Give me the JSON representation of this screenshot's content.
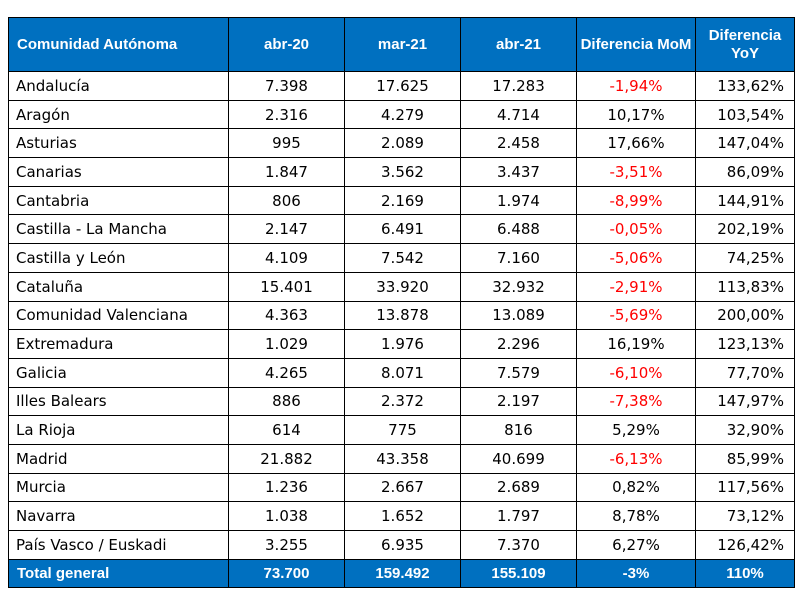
{
  "headers": [
    "Comunidad Autónoma",
    "abr-20",
    "mar-21",
    "abr-21",
    "Diferencia MoM",
    "Diferencia YoY"
  ],
  "rows": [
    {
      "name": "Andalucía",
      "abr20": "7.398",
      "mar21": "17.625",
      "abr21": "17.283",
      "mom": "-1,94%",
      "yoy": "133,62%",
      "mom_negative": true
    },
    {
      "name": "Aragón",
      "abr20": "2.316",
      "mar21": "4.279",
      "abr21": "4.714",
      "mom": "10,17%",
      "yoy": "103,54%",
      "mom_negative": false
    },
    {
      "name": "Asturias",
      "abr20": "995",
      "mar21": "2.089",
      "abr21": "2.458",
      "mom": "17,66%",
      "yoy": "147,04%",
      "mom_negative": false
    },
    {
      "name": "Canarias",
      "abr20": "1.847",
      "mar21": "3.562",
      "abr21": "3.437",
      "mom": "-3,51%",
      "yoy": "86,09%",
      "mom_negative": true
    },
    {
      "name": "Cantabria",
      "abr20": "806",
      "mar21": "2.169",
      "abr21": "1.974",
      "mom": "-8,99%",
      "yoy": "144,91%",
      "mom_negative": true
    },
    {
      "name": "Castilla - La Mancha",
      "abr20": "2.147",
      "mar21": "6.491",
      "abr21": "6.488",
      "mom": "-0,05%",
      "yoy": "202,19%",
      "mom_negative": true
    },
    {
      "name": "Castilla y León",
      "abr20": "4.109",
      "mar21": "7.542",
      "abr21": "7.160",
      "mom": "-5,06%",
      "yoy": "74,25%",
      "mom_negative": true
    },
    {
      "name": "Cataluña",
      "abr20": "15.401",
      "mar21": "33.920",
      "abr21": "32.932",
      "mom": "-2,91%",
      "yoy": "113,83%",
      "mom_negative": true
    },
    {
      "name": "Comunidad Valenciana",
      "abr20": "4.363",
      "mar21": "13.878",
      "abr21": "13.089",
      "mom": "-5,69%",
      "yoy": "200,00%",
      "mom_negative": true
    },
    {
      "name": "Extremadura",
      "abr20": "1.029",
      "mar21": "1.976",
      "abr21": "2.296",
      "mom": "16,19%",
      "yoy": "123,13%",
      "mom_negative": false
    },
    {
      "name": "Galicia",
      "abr20": "4.265",
      "mar21": "8.071",
      "abr21": "7.579",
      "mom": "-6,10%",
      "yoy": "77,70%",
      "mom_negative": true
    },
    {
      "name": "Illes Balears",
      "abr20": "886",
      "mar21": "2.372",
      "abr21": "2.197",
      "mom": "-7,38%",
      "yoy": "147,97%",
      "mom_negative": true
    },
    {
      "name": "La Rioja",
      "abr20": "614",
      "mar21": "775",
      "abr21": "816",
      "mom": "5,29%",
      "yoy": "32,90%",
      "mom_negative": false
    },
    {
      "name": "Madrid",
      "abr20": "21.882",
      "mar21": "43.358",
      "abr21": "40.699",
      "mom": "-6,13%",
      "yoy": "85,99%",
      "mom_negative": true
    },
    {
      "name": "Murcia",
      "abr20": "1.236",
      "mar21": "2.667",
      "abr21": "2.689",
      "mom": "0,82%",
      "yoy": "117,56%",
      "mom_negative": false
    },
    {
      "name": "Navarra",
      "abr20": "1.038",
      "mar21": "1.652",
      "abr21": "1.797",
      "mom": "8,78%",
      "yoy": "73,12%",
      "mom_negative": false
    },
    {
      "name": "País Vasco / Euskadi",
      "abr20": "3.255",
      "mar21": "6.935",
      "abr21": "7.370",
      "mom": "6,27%",
      "yoy": "126,42%",
      "mom_negative": false
    }
  ],
  "total": {
    "name": "Total general",
    "abr20": "73.700",
    "mar21": "159.492",
    "abr21": "155.109",
    "mom": "-3%",
    "yoy": "110%"
  },
  "colors": {
    "header_bg": "#0070C0",
    "header_text": "#FFFFFF",
    "negative": "#FF0000",
    "text": "#000000",
    "border": "#000000"
  }
}
